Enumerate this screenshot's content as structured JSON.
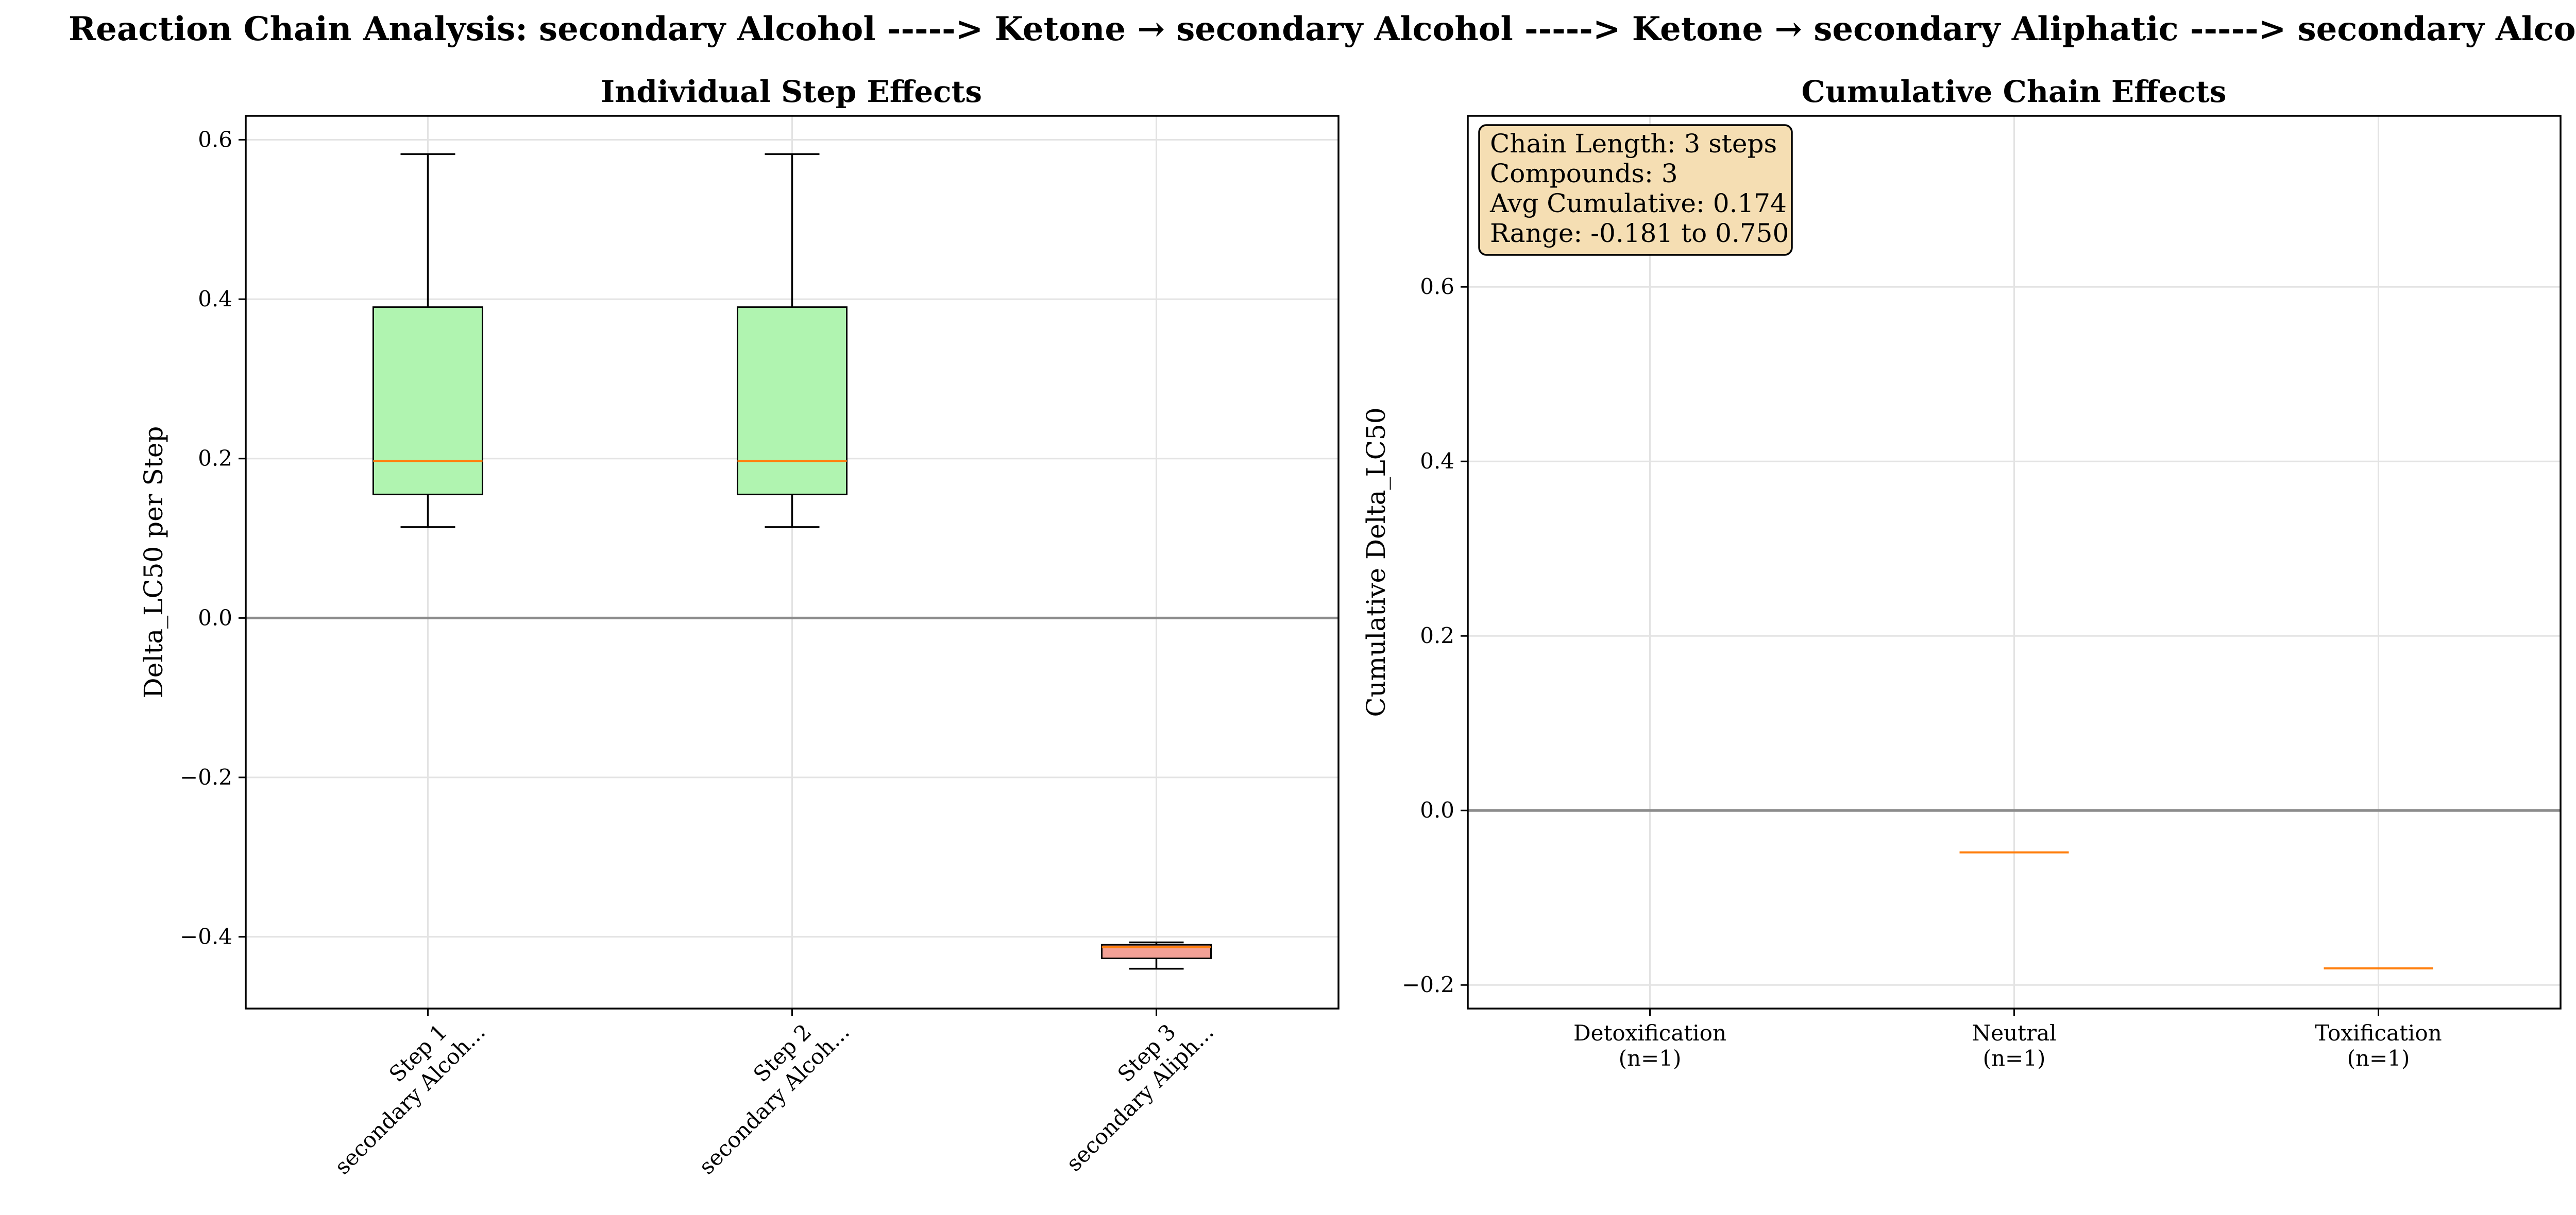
{
  "suptitle": "Reaction Chain Analysis: secondary Alcohol -----> Ketone → secondary Alcohol -----> Ketone → secondary Aliphatic -----> secondary Alcohol",
  "colors": {
    "box_positive": "#b0f4b0",
    "box_negative": "#f2a096",
    "median": "#ff7f0e",
    "info_box": "#f5deb3"
  },
  "chart_data": [
    {
      "type": "box",
      "title": "Individual Step Effects",
      "ylabel": "Delta_LC50 per Step",
      "xlabel": "",
      "ylim": [
        -0.49,
        0.63
      ],
      "yticks": [
        -0.4,
        -0.2,
        0.0,
        0.2,
        0.4,
        0.6
      ],
      "ytick_labels": [
        "−0.4",
        "−0.2",
        "0.0",
        "0.2",
        "0.4",
        "0.6"
      ],
      "grid": true,
      "reference_line": 0.0,
      "categories": [
        {
          "line1": "Step 1",
          "line2": "secondary Alcoh..."
        },
        {
          "line1": "Step 2",
          "line2": "secondary Alcoh..."
        },
        {
          "line1": "Step 3",
          "line2": "secondary Aliph..."
        }
      ],
      "boxes": [
        {
          "whislo": 0.114,
          "q1": 0.155,
          "med": 0.197,
          "q3": 0.39,
          "whishi": 0.582,
          "color": "box_positive"
        },
        {
          "whislo": 0.114,
          "q1": 0.155,
          "med": 0.197,
          "q3": 0.39,
          "whishi": 0.582,
          "color": "box_positive"
        },
        {
          "whislo": -0.44,
          "q1": -0.427,
          "med": -0.413,
          "q3": -0.41,
          "whishi": -0.407,
          "color": "box_negative"
        }
      ]
    },
    {
      "type": "box",
      "title": "Cumulative Chain Effects",
      "ylabel": "Cumulative Delta_LC50",
      "xlabel": "",
      "ylim": [
        -0.227,
        0.796
      ],
      "yticks": [
        -0.2,
        0.0,
        0.2,
        0.4,
        0.6
      ],
      "ytick_labels": [
        "−0.2",
        "0.0",
        "0.2",
        "0.4",
        "0.6"
      ],
      "grid": true,
      "reference_line": 0.0,
      "categories": [
        {
          "line1": "Detoxification",
          "line2": "(n=1)"
        },
        {
          "line1": "Neutral",
          "line2": "(n=1)"
        },
        {
          "line1": "Toxification",
          "line2": "(n=1)"
        }
      ],
      "boxes": [
        {
          "whislo": 0.75,
          "q1": 0.75,
          "med": 0.75,
          "q3": 0.75,
          "whishi": 0.75,
          "color": "box_positive"
        },
        {
          "whislo": -0.048,
          "q1": -0.048,
          "med": -0.048,
          "q3": -0.048,
          "whishi": -0.048,
          "color": "box_positive"
        },
        {
          "whislo": -0.181,
          "q1": -0.181,
          "med": -0.181,
          "q3": -0.181,
          "whishi": -0.181,
          "color": "box_negative"
        }
      ],
      "info_box": {
        "placement": "top-left",
        "lines": [
          "Chain Length: 3 steps",
          "Compounds: 3",
          "Avg Cumulative: 0.174",
          "Range: -0.181 to 0.750"
        ]
      }
    }
  ]
}
